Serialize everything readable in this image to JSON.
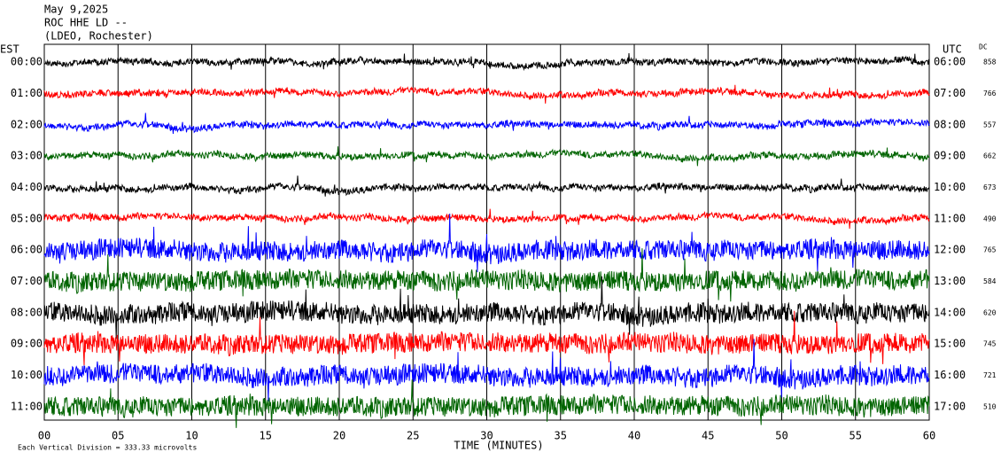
{
  "header": {
    "date": "May 9,2025",
    "station": "ROC HHE LD --",
    "network": "(LDEO, Rochester)"
  },
  "left_axis_title": "EST",
  "right_axis_title": "UTC",
  "dc_title": "DC",
  "rows": [
    {
      "est": "00:00",
      "utc": "06:00",
      "dc": "858",
      "color": "#000000"
    },
    {
      "est": "01:00",
      "utc": "07:00",
      "dc": "766",
      "color": "#ff0000"
    },
    {
      "est": "02:00",
      "utc": "08:00",
      "dc": "557",
      "color": "#0000ff"
    },
    {
      "est": "03:00",
      "utc": "09:00",
      "dc": "662",
      "color": "#006400"
    },
    {
      "est": "04:00",
      "utc": "10:00",
      "dc": "673",
      "color": "#000000"
    },
    {
      "est": "05:00",
      "utc": "11:00",
      "dc": "490",
      "color": "#ff0000"
    },
    {
      "est": "06:00",
      "utc": "12:00",
      "dc": "765",
      "color": "#0000ff"
    },
    {
      "est": "07:00",
      "utc": "13:00",
      "dc": "584",
      "color": "#006400"
    },
    {
      "est": "08:00",
      "utc": "14:00",
      "dc": "620",
      "color": "#000000"
    },
    {
      "est": "09:00",
      "utc": "15:00",
      "dc": "745",
      "color": "#ff0000"
    },
    {
      "est": "10:00",
      "utc": "16:00",
      "dc": "721",
      "color": "#0000ff"
    },
    {
      "est": "11:00",
      "utc": "17:00",
      "dc": "510",
      "color": "#006400"
    }
  ],
  "xaxis": {
    "title": "TIME (MINUTES)",
    "xlim": [
      0,
      60
    ],
    "ticks": [
      {
        "value": 0,
        "label": "00"
      },
      {
        "value": 5,
        "label": "05"
      },
      10,
      15,
      20,
      25,
      30,
      35,
      40,
      45,
      50,
      55,
      60
    ]
  },
  "footnote": "Each Vertical Division = 333.33 microvolts"
}
